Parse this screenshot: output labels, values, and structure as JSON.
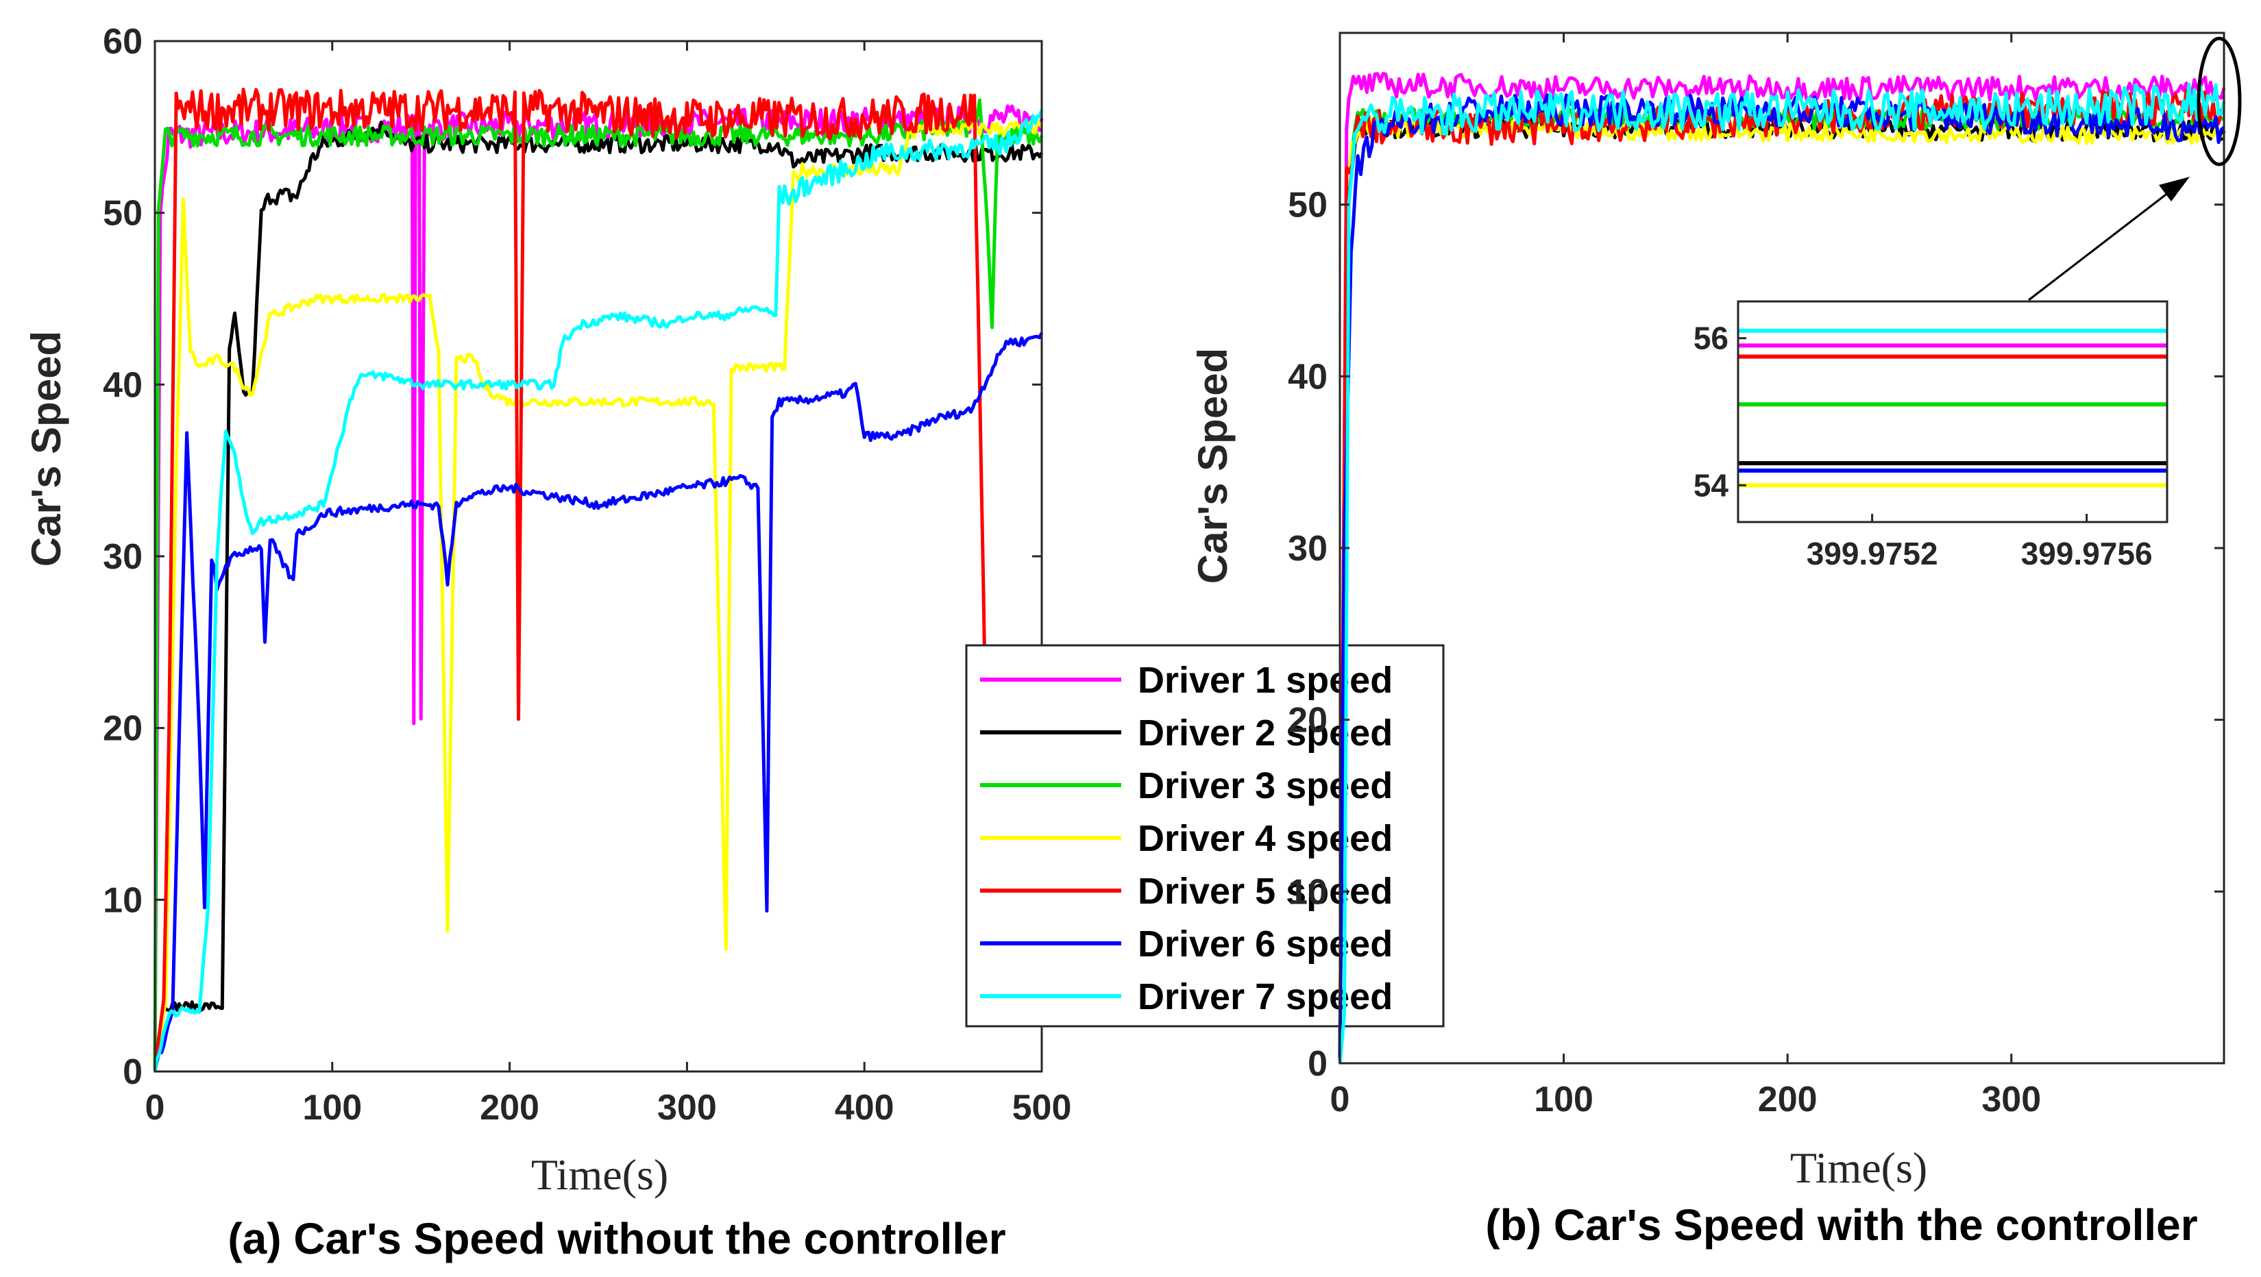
{
  "colors": {
    "driver1": "#ff00ff",
    "driver2": "#000000",
    "driver3": "#00dd00",
    "driver4": "#ffff00",
    "driver5": "#ff0000",
    "driver6": "#0000ff",
    "driver7": "#00ffff"
  },
  "chart_data": [
    {
      "type": "line",
      "caption": "(a) Car's Speed without the controller",
      "xlabel": "Time(s)",
      "ylabel": "Car's Speed",
      "xlim": [
        0,
        500
      ],
      "ylim": [
        0,
        60
      ],
      "xticks": [
        0,
        100,
        200,
        300,
        400,
        500
      ],
      "yticks": [
        0,
        10,
        20,
        30,
        40,
        50,
        60
      ],
      "grid": false,
      "legend": "lower-right",
      "series": [
        {
          "name": "Driver 1 speed",
          "color": "#ff00ff",
          "x": [
            0,
            3,
            8,
            140,
            145,
            146,
            147,
            149,
            150,
            152,
            155,
            500
          ],
          "y": [
            0,
            50,
            54.5,
            55,
            55,
            20.5,
            55,
            55,
            20.5,
            55,
            55,
            55.5
          ]
        },
        {
          "name": "Driver 2 speed",
          "color": "#000000",
          "x": [
            0,
            5,
            10,
            38,
            42,
            45,
            50,
            55,
            60,
            65,
            80,
            88,
            95,
            130,
            140,
            350,
            360,
            400,
            500
          ],
          "y": [
            0,
            3.8,
            3.8,
            3.8,
            42,
            44,
            39.5,
            39.5,
            50,
            51,
            51,
            53,
            54,
            55,
            54,
            54,
            53,
            53.5,
            53.5
          ]
        },
        {
          "name": "Driver 3 speed",
          "color": "#00dd00",
          "x": [
            0,
            2,
            6,
            100,
            200,
            300,
            400,
            460,
            465,
            468,
            472,
            475,
            500
          ],
          "y": [
            0,
            50,
            54.5,
            54.5,
            54.5,
            54.5,
            54.5,
            55,
            56.5,
            52,
            43.5,
            54.5,
            54.5
          ]
        },
        {
          "name": "Driver 4 speed",
          "color": "#ffff00",
          "x": [
            0,
            6,
            12,
            16,
            20,
            25,
            35,
            45,
            50,
            55,
            65,
            90,
            145,
            155,
            160,
            165,
            170,
            180,
            185,
            190,
            200,
            210,
            220,
            240,
            300,
            315,
            322,
            325,
            330,
            340,
            355,
            360,
            362,
            365,
            420,
            425,
            430,
            500
          ],
          "y": [
            0,
            4,
            35,
            50.5,
            42,
            41,
            41.5,
            41,
            40,
            39.5,
            44,
            45,
            45,
            45,
            42,
            8,
            41.5,
            41.5,
            40,
            39.5,
            39,
            39,
            39,
            39,
            39,
            39,
            7,
            41,
            41,
            41,
            41,
            52,
            52,
            52.5,
            52.5,
            54.5,
            54.8,
            55
          ]
        },
        {
          "name": "Driver 5 speed",
          "color": "#ff0000",
          "x": [
            0,
            5,
            8,
            12,
            20,
            100,
            200,
            203,
            205,
            208,
            212,
            300,
            400,
            460,
            462,
            465,
            468,
            470
          ],
          "y": [
            0,
            4,
            20,
            56,
            56,
            56,
            56,
            56,
            20.5,
            56,
            56,
            55.5,
            55.5,
            56,
            56,
            40,
            23,
            24
          ]
        },
        {
          "name": "Driver 6 speed",
          "color": "#0000ff",
          "x": [
            0,
            10,
            15,
            18,
            25,
            28,
            32,
            35,
            40,
            45,
            55,
            60,
            62,
            65,
            70,
            78,
            80,
            85,
            95,
            140,
            160,
            165,
            170,
            175,
            200,
            250,
            300,
            330,
            340,
            345,
            348,
            352,
            360,
            390,
            395,
            400,
            420,
            440,
            460,
            470,
            480,
            490,
            500
          ],
          "y": [
            0,
            3.5,
            25,
            37,
            20,
            9.5,
            30,
            28,
            29.5,
            30,
            30.5,
            30.5,
            25,
            31,
            30,
            28.5,
            31.5,
            31.5,
            32.5,
            33,
            33,
            28.5,
            33,
            33.5,
            34,
            33,
            34,
            34.5,
            34,
            9.5,
            38,
            39,
            39,
            39.5,
            40,
            37,
            37,
            38,
            38.5,
            40.5,
            42.5,
            42.5,
            43
          ]
        },
        {
          "name": "Driver 7 speed",
          "color": "#00ffff",
          "x": [
            0,
            8,
            20,
            25,
            30,
            35,
            40,
            45,
            50,
            55,
            60,
            80,
            95,
            100,
            105,
            110,
            115,
            130,
            150,
            210,
            220,
            225,
            230,
            240,
            260,
            290,
            300,
            320,
            340,
            350,
            352,
            355,
            360,
            365,
            400,
            410,
            420,
            480,
            490,
            500
          ],
          "y": [
            0,
            3.5,
            3.5,
            3.5,
            9.5,
            30,
            37.5,
            36,
            33,
            31.5,
            32,
            32.5,
            33,
            35,
            37,
            39,
            40.5,
            40.5,
            40,
            40,
            40,
            40,
            42.5,
            43.5,
            44,
            43.5,
            44,
            44,
            44.5,
            44,
            51,
            51,
            51,
            51.5,
            53,
            53.5,
            53.5,
            54,
            55,
            56
          ]
        }
      ]
    },
    {
      "type": "line",
      "caption": "(b) Car's Speed with the controller",
      "xlabel": "Time(s)",
      "ylabel": "Car's Speed",
      "xlim": [
        0,
        395
      ],
      "ylim": [
        0,
        60
      ],
      "xticks": [
        0,
        100,
        200,
        300
      ],
      "yticks": [
        0,
        10,
        20,
        30,
        40,
        50
      ],
      "grid": false,
      "series": [
        {
          "name": "Driver 1 speed",
          "color": "#ff00ff",
          "x": [
            0,
            3,
            6,
            100,
            200,
            300,
            395
          ],
          "y": [
            0,
            55,
            57,
            56.8,
            56.8,
            56.8,
            56.8
          ]
        },
        {
          "name": "Driver 2 speed",
          "color": "#000000",
          "x": [
            0,
            3,
            8,
            100,
            200,
            300,
            395
          ],
          "y": [
            0,
            50,
            54.5,
            54.5,
            54.5,
            54.3,
            54.3
          ]
        },
        {
          "name": "Driver 3 speed",
          "color": "#00dd00",
          "x": [
            0,
            3,
            8,
            100,
            200,
            300,
            395
          ],
          "y": [
            0,
            52,
            55,
            55,
            55,
            55,
            55
          ]
        },
        {
          "name": "Driver 4 speed",
          "color": "#ffff00",
          "x": [
            0,
            3,
            8,
            100,
            200,
            300,
            395
          ],
          "y": [
            0,
            52,
            54.5,
            54.3,
            54.2,
            54.1,
            54
          ]
        },
        {
          "name": "Driver 5 speed",
          "color": "#ff0000",
          "x": [
            0,
            3,
            8,
            100,
            200,
            300,
            395
          ],
          "y": [
            0,
            52,
            54.5,
            54.5,
            55,
            55.5,
            55.7
          ]
        },
        {
          "name": "Driver 6 speed",
          "color": "#0000ff",
          "x": [
            0,
            2,
            5,
            8,
            12,
            20,
            60,
            100,
            200,
            300,
            395
          ],
          "y": [
            0,
            30,
            47,
            52,
            53.5,
            54.5,
            55.5,
            55.5,
            55.5,
            55,
            54.5
          ]
        },
        {
          "name": "Driver 7 speed",
          "color": "#00ffff",
          "x": [
            0,
            2,
            4,
            8,
            100,
            200,
            300,
            395
          ],
          "y": [
            0,
            3,
            50,
            55,
            55.5,
            55.5,
            55.5,
            56
          ]
        }
      ],
      "inset": {
        "xlim": [
          399.97495,
          399.97575
        ],
        "ylim": [
          53.5,
          56.5
        ],
        "xticks": [
          "399.9752",
          "399.9756"
        ],
        "yticks": [
          54,
          56
        ],
        "lines": [
          {
            "name": "Driver 7 speed",
            "color": "#00ffff",
            "y": 56.1
          },
          {
            "name": "Driver 1 speed",
            "color": "#ff00ff",
            "y": 55.9
          },
          {
            "name": "Driver 5 speed",
            "color": "#ff0000",
            "y": 55.75
          },
          {
            "name": "Driver 3 speed",
            "color": "#00dd00",
            "y": 55.1
          },
          {
            "name": "Driver 2 speed",
            "color": "#000000",
            "y": 54.3
          },
          {
            "name": "Driver 6 speed",
            "color": "#0000ff",
            "y": 54.2
          },
          {
            "name": "Driver 4 speed",
            "color": "#ffff00",
            "y": 54.0
          }
        ]
      }
    }
  ]
}
